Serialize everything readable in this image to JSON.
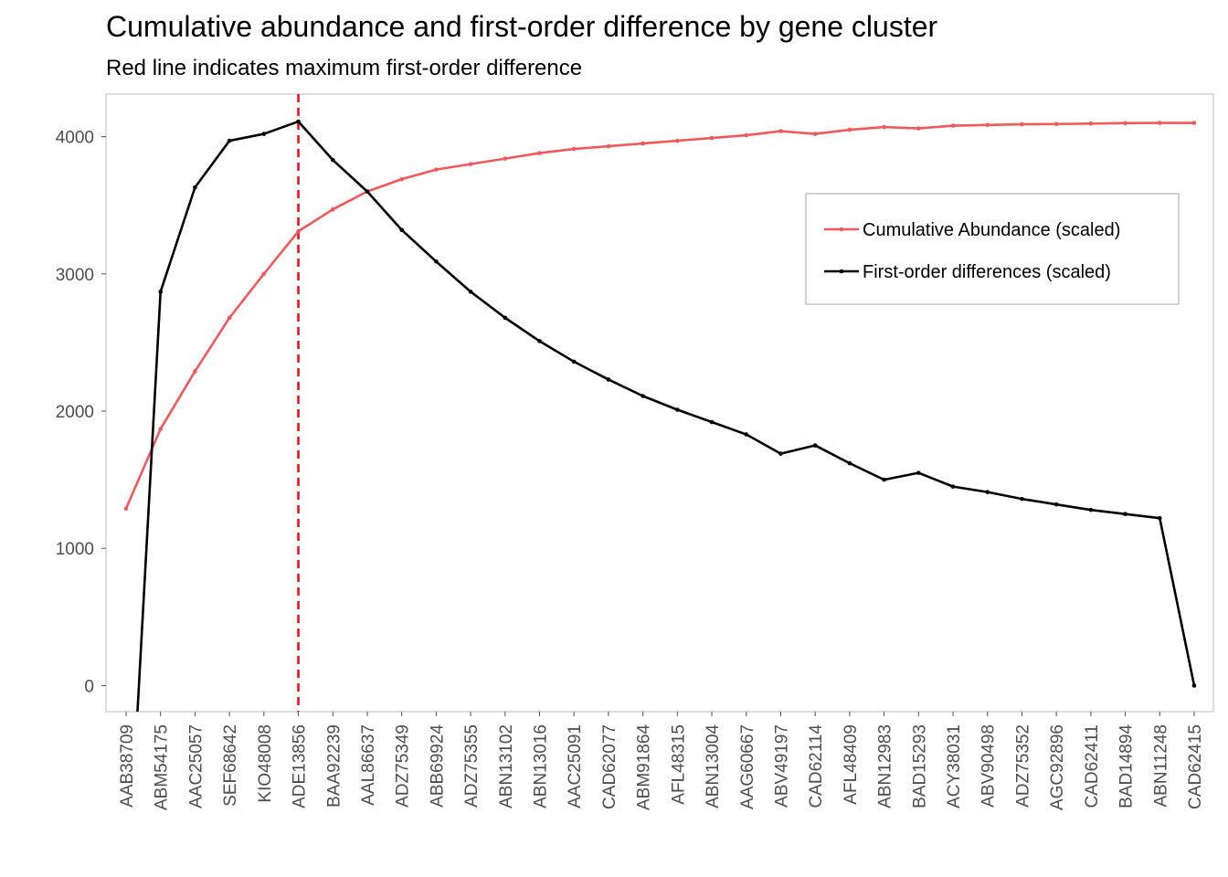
{
  "chart_data": {
    "type": "line",
    "title": "Cumulative abundance and first-order difference by gene cluster",
    "subtitle": "Red line indicates maximum first-order difference",
    "xlabel": "",
    "ylabel": "",
    "ylim": [
      -190,
      4310
    ],
    "yticks": [
      0,
      1000,
      2000,
      3000,
      4000
    ],
    "grid": false,
    "legend_position": "top-right",
    "categories": [
      "AAB38709",
      "ABM54175",
      "AAC25057",
      "SEF68642",
      "KIO48008",
      "ADE13856",
      "BAA92239",
      "AAL86637",
      "ADZ75349",
      "ABB69924",
      "ADZ75355",
      "ABN13102",
      "ABN13016",
      "AAC25091",
      "CAD62077",
      "ABM91864",
      "AFL48315",
      "ABN13004",
      "AAG60667",
      "ABV49197",
      "CAD62114",
      "AFL48409",
      "ABN12983",
      "BAD15293",
      "ACY38031",
      "ABV90498",
      "ADZ75352",
      "AGC92896",
      "CAD62411",
      "BAD14894",
      "ABN11248",
      "CAD62415"
    ],
    "series": [
      {
        "name": "Cumulative Abundance (scaled)",
        "color": "#f0595b",
        "values": [
          1290,
          1870,
          2290,
          2680,
          3000,
          3310,
          3470,
          3600,
          3690,
          3760,
          3800,
          3840,
          3880,
          3910,
          3930,
          3950,
          3970,
          3990,
          4010,
          4040,
          4020,
          4050,
          4070,
          4060,
          4080,
          4085,
          4090,
          4092,
          4095,
          4098,
          4100,
          4100
        ]
      },
      {
        "name": "First-order differences (scaled)",
        "color": "#000000",
        "values": [
          -1700,
          2870,
          3630,
          3970,
          4020,
          4110,
          3830,
          3600,
          3320,
          3090,
          2870,
          2680,
          2510,
          2360,
          2230,
          2110,
          2010,
          1920,
          1830,
          1690,
          1750,
          1620,
          1500,
          1550,
          1450,
          1410,
          1360,
          1320,
          1280,
          1250,
          1220,
          0
        ]
      }
    ],
    "reference_line": {
      "category": "ADE13856",
      "color": "#e8101a",
      "style": "dashed"
    }
  }
}
